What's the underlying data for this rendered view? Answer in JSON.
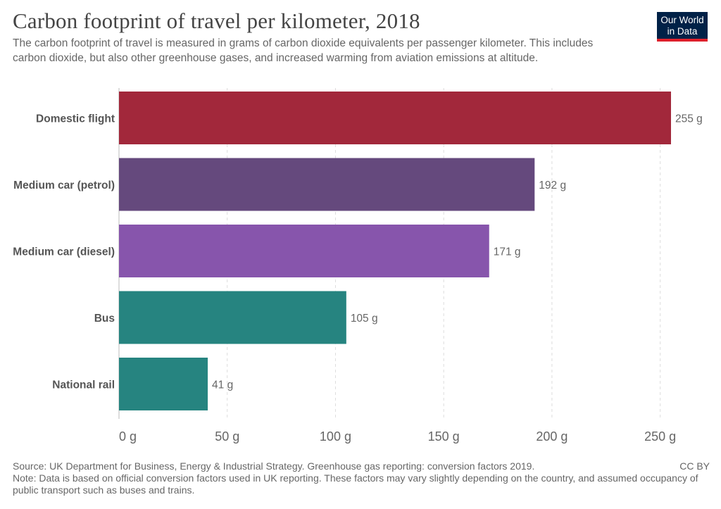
{
  "header": {
    "title": "Carbon footprint of travel per kilometer, 2018",
    "subtitle": "The carbon footprint of travel is measured in grams of carbon dioxide equivalents per passenger kilometer. This includes carbon dioxide, but also other greenhouse gases, and increased warming from aviation emissions at altitude."
  },
  "logo": {
    "line1": "Our World",
    "line2": "in Data"
  },
  "footer": {
    "source": "Source: UK Department for Business, Energy & Industrial Strategy. Greenhouse gas reporting: conversion factors 2019.",
    "note": "Note: Data is based on official conversion factors used in UK reporting. These factors may vary slightly depending on the country, and assumed occupancy of public transport such as buses and trains.",
    "license": "CC BY"
  },
  "chart_data": {
    "type": "bar",
    "orientation": "horizontal",
    "categories": [
      "Domestic flight",
      "Medium car (petrol)",
      "Medium car (diesel)",
      "Bus",
      "National rail"
    ],
    "values": [
      255,
      192,
      171,
      105,
      41
    ],
    "value_labels": [
      "255 g",
      "192 g",
      "171 g",
      "105 g",
      "41 g"
    ],
    "colors": [
      "#a2283b",
      "#65497d",
      "#8755ac",
      "#268480",
      "#268480"
    ],
    "xlim": [
      0,
      255
    ],
    "xticks": [
      0,
      50,
      100,
      150,
      200,
      250
    ],
    "xtick_labels": [
      "0 g",
      "50 g",
      "100 g",
      "150 g",
      "200 g",
      "250 g"
    ],
    "grid": "vertical dashed"
  }
}
